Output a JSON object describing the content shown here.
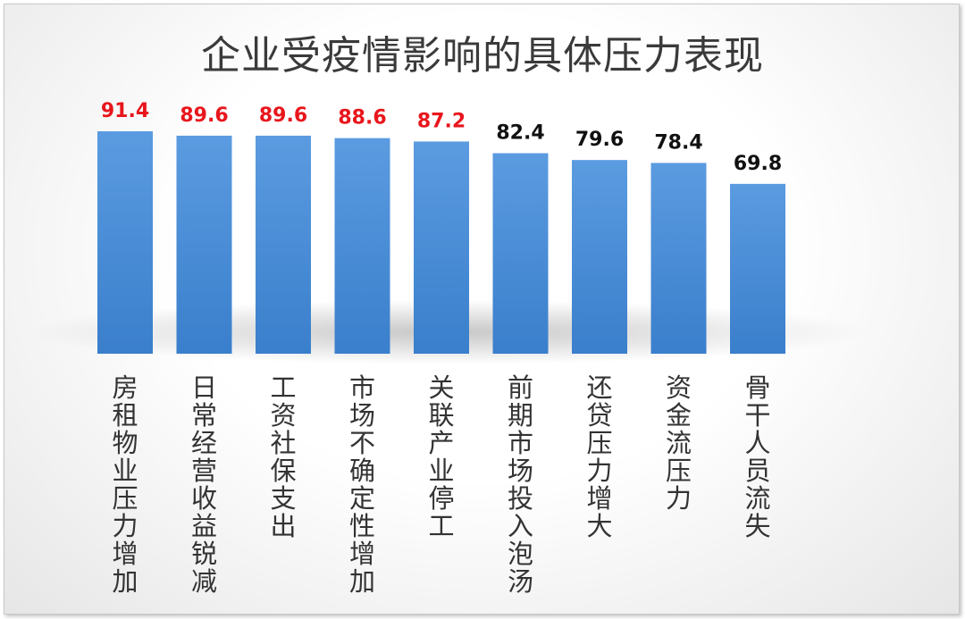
{
  "chart_data": {
    "type": "bar",
    "title": "企业受疫情影响的具体压力表现",
    "categories": [
      "房租物业压力增加",
      "日常经营收益锐减",
      "工资社保支出",
      "市场不确定性增加",
      "关联产业停工",
      "前期市场投入泡汤",
      "还贷压力增大",
      "资金流压力",
      "骨干人员流失"
    ],
    "values": [
      91.4,
      89.6,
      89.6,
      88.6,
      87.2,
      82.4,
      79.6,
      78.4,
      69.8
    ],
    "value_labels": [
      "91.4",
      "89.6",
      "89.6",
      "88.6",
      "87.2",
      "82.4",
      "79.6",
      "78.4",
      "69.8"
    ],
    "label_colors": [
      "#e8161c",
      "#e8161c",
      "#e8161c",
      "#e8161c",
      "#e8161c",
      "#111111",
      "#111111",
      "#111111",
      "#111111"
    ],
    "bar_color": "#4a8ed6",
    "ylim": [
      0,
      100
    ],
    "grid": false,
    "legend": "none"
  }
}
